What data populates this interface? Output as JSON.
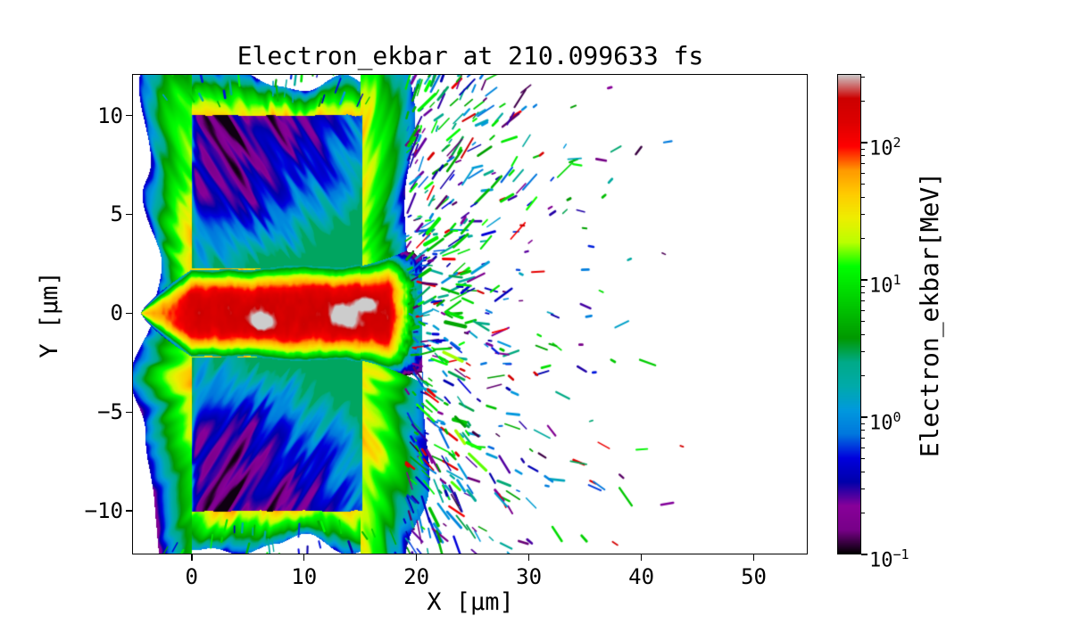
{
  "figure": {
    "title": "Electron_ekbar at 210.099633 fs",
    "xlabel": "X [μm]",
    "ylabel": "Y [μm]",
    "colorbar_label": "Electron_ekbar[MeV]",
    "background_color": "#ffffff"
  },
  "chart_data": {
    "type": "heatmap",
    "title": "Electron_ekbar at 210.099633 fs",
    "xlabel": "X [μm]",
    "ylabel": "Y [μm]",
    "xlim": [
      -5.3,
      54.8
    ],
    "ylim": [
      -12.2,
      12.1
    ],
    "x_ticks": [
      0,
      10,
      20,
      30,
      40,
      50
    ],
    "y_ticks": [
      -10,
      -5,
      0,
      5,
      10
    ],
    "grid": false,
    "colormap": "nipy_spectral",
    "colormap_stops": [
      [
        0.0,
        [
          0,
          0,
          0
        ]
      ],
      [
        0.05,
        [
          119,
          0,
          136
        ]
      ],
      [
        0.1,
        [
          136,
          0,
          153
        ]
      ],
      [
        0.15,
        [
          0,
          0,
          170
        ]
      ],
      [
        0.2,
        [
          0,
          0,
          221
        ]
      ],
      [
        0.25,
        [
          0,
          119,
          221
        ]
      ],
      [
        0.3,
        [
          0,
          153,
          221
        ]
      ],
      [
        0.35,
        [
          0,
          170,
          170
        ]
      ],
      [
        0.4,
        [
          0,
          170,
          136
        ]
      ],
      [
        0.45,
        [
          0,
          153,
          0
        ]
      ],
      [
        0.5,
        [
          0,
          187,
          0
        ]
      ],
      [
        0.55,
        [
          0,
          221,
          0
        ]
      ],
      [
        0.6,
        [
          0,
          255,
          0
        ]
      ],
      [
        0.65,
        [
          187,
          255,
          0
        ]
      ],
      [
        0.7,
        [
          238,
          238,
          0
        ]
      ],
      [
        0.75,
        [
          255,
          204,
          0
        ]
      ],
      [
        0.8,
        [
          255,
          153,
          0
        ]
      ],
      [
        0.85,
        [
          255,
          0,
          0
        ]
      ],
      [
        0.9,
        [
          221,
          0,
          0
        ]
      ],
      [
        0.95,
        [
          204,
          0,
          0
        ]
      ],
      [
        1.0,
        [
          204,
          204,
          204
        ]
      ]
    ],
    "colorbar": {
      "label": "Electron_ekbar[MeV]",
      "scale": "log",
      "vmin": 0.1,
      "vmax": 316,
      "tick_exponents": [
        -1,
        0,
        1,
        2
      ]
    },
    "features": {
      "description": "Electron mean kinetic energy map from a laser-plasma simulation: solid target slab with a hot laser-drilled channel on axis, surrounding heated halo and scattered ejected electrons downstream",
      "target_slab": {
        "x_range": [
          0,
          15
        ],
        "y_outer": 10,
        "channel_half_width": 2.2,
        "interior_values_MeV": {
          "cold_core": 0.15,
          "bulk": 0.5,
          "near_channel": 2.0
        }
      },
      "channel": {
        "x_range": [
          -4.5,
          20.5
        ],
        "core_value_MeV": 180,
        "hotspots": [
          {
            "x": 6.2,
            "y": -0.4,
            "r": 1.0
          },
          {
            "x": 13.6,
            "y": -0.1,
            "r": 1.3
          },
          {
            "x": 15.6,
            "y": 0.45,
            "r": 0.8
          }
        ]
      },
      "halo": {
        "surface_value_MeV": 32,
        "edge_value_MeV": 3,
        "extent_um": {
          "left": 5.5,
          "top": 2.4,
          "bottom": 2.4,
          "right": 8
        }
      },
      "scattered_ejecta": {
        "x_range": [
          19,
          43
        ],
        "values_MeV": [
          0.12,
          170
        ]
      }
    }
  }
}
